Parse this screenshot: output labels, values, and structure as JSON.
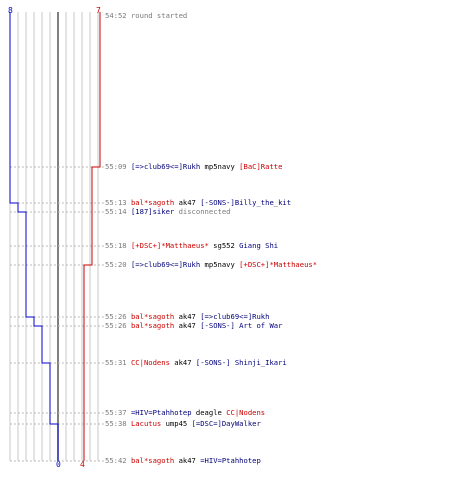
{
  "score": {
    "blue_start": "8",
    "red_start": "7",
    "blue_end": "0",
    "red_end": "4",
    "colors": {
      "blue": "#0000cc",
      "red": "#cc0000"
    }
  },
  "events": [
    {
      "time": "54:52",
      "parts": [
        {
          "text": "round started",
          "c": "grey"
        }
      ]
    },
    {
      "time": "55:09",
      "parts": [
        {
          "text": "[=>club69<=]Rukh",
          "c": "blue"
        },
        {
          "text": " mp5navy ",
          "c": "black"
        },
        {
          "text": "[BaC]Ratte",
          "c": "red"
        }
      ]
    },
    {
      "time": "55:13",
      "parts": [
        {
          "text": "bal*sagoth",
          "c": "red"
        },
        {
          "text": " ak47 ",
          "c": "black"
        },
        {
          "text": "[-SONS-]Billy_the_kit",
          "c": "blue"
        }
      ]
    },
    {
      "time": "55:14",
      "parts": [
        {
          "text": "[187]siker",
          "c": "blue"
        },
        {
          "text": " disconnected",
          "c": "grey"
        }
      ]
    },
    {
      "time": "55:18",
      "parts": [
        {
          "text": "[+DSC+]*Matthaeus*",
          "c": "red"
        },
        {
          "text": " sg552 ",
          "c": "black"
        },
        {
          "text": "Giang Shi",
          "c": "blue"
        }
      ]
    },
    {
      "time": "55:20",
      "parts": [
        {
          "text": "[=>club69<=]Rukh",
          "c": "blue"
        },
        {
          "text": " mp5navy ",
          "c": "black"
        },
        {
          "text": "[+DSC+]*Matthaeus*",
          "c": "red"
        }
      ]
    },
    {
      "time": "55:26",
      "parts": [
        {
          "text": "bal*sagoth",
          "c": "red"
        },
        {
          "text": " ak47 ",
          "c": "black"
        },
        {
          "text": "[=>club69<=]Rukh",
          "c": "blue"
        }
      ]
    },
    {
      "time": "55:26",
      "parts": [
        {
          "text": "bal*sagoth",
          "c": "red"
        },
        {
          "text": " ak47 ",
          "c": "black"
        },
        {
          "text": "[-SONS-] Art of War",
          "c": "blue"
        }
      ]
    },
    {
      "time": "55:31",
      "parts": [
        {
          "text": "CC|Nodens",
          "c": "red"
        },
        {
          "text": " ak47 ",
          "c": "black"
        },
        {
          "text": "[-SONS-] Shinji_Ikari",
          "c": "blue"
        }
      ]
    },
    {
      "time": "55:37",
      "parts": [
        {
          "text": "=HIV=Ptahhotep",
          "c": "blue"
        },
        {
          "text": " deagle ",
          "c": "black"
        },
        {
          "text": "CC|Nodens",
          "c": "red"
        }
      ]
    },
    {
      "time": "55:38",
      "parts": [
        {
          "text": "Lacutus",
          "c": "red"
        },
        {
          "text": " ump45 ",
          "c": "black"
        },
        {
          "text": "[=DSC=]DayWalker",
          "c": "blue"
        }
      ]
    },
    {
      "time": "55:42",
      "parts": [
        {
          "text": "bal*sagoth",
          "c": "red"
        },
        {
          "text": " ak47 ",
          "c": "black"
        },
        {
          "text": "=HIV=Ptahhotep",
          "c": "blue"
        }
      ]
    }
  ]
}
